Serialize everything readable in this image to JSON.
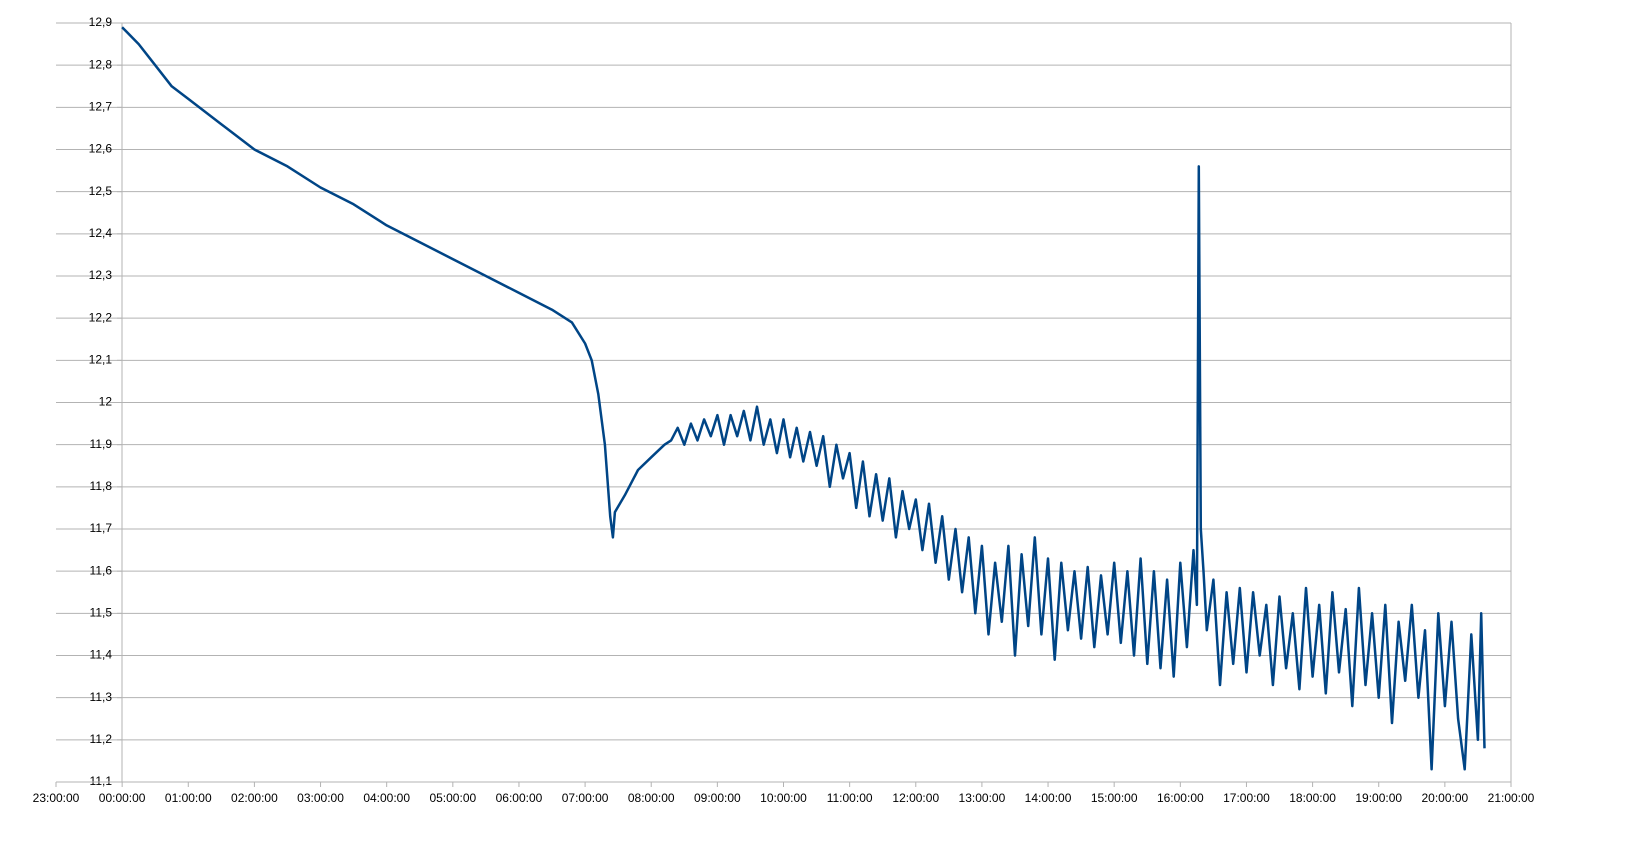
{
  "chart_data": {
    "type": "line",
    "x": [
      0,
      0.25,
      0.5,
      0.75,
      1,
      1.5,
      2,
      2.5,
      3,
      3.5,
      4,
      4.5,
      5,
      5.5,
      6,
      6.5,
      6.8,
      7,
      7.1,
      7.2,
      7.3,
      7.38,
      7.42,
      7.45,
      7.6,
      7.8,
      8.0,
      8.2,
      8.3,
      8.4,
      8.5,
      8.6,
      8.7,
      8.8,
      8.9,
      9.0,
      9.1,
      9.2,
      9.3,
      9.4,
      9.5,
      9.6,
      9.7,
      9.8,
      9.9,
      10.0,
      10.1,
      10.2,
      10.3,
      10.4,
      10.5,
      10.6,
      10.7,
      10.8,
      10.9,
      11.0,
      11.1,
      11.2,
      11.3,
      11.4,
      11.5,
      11.6,
      11.7,
      11.8,
      11.9,
      12.0,
      12.1,
      12.2,
      12.3,
      12.4,
      12.5,
      12.6,
      12.7,
      12.8,
      12.9,
      13.0,
      13.1,
      13.2,
      13.3,
      13.4,
      13.5,
      13.6,
      13.7,
      13.8,
      13.9,
      14.0,
      14.1,
      14.2,
      14.3,
      14.4,
      14.5,
      14.6,
      14.7,
      14.8,
      14.9,
      15.0,
      15.1,
      15.2,
      15.3,
      15.4,
      15.5,
      15.6,
      15.7,
      15.8,
      15.9,
      16.0,
      16.1,
      16.2,
      16.25,
      16.28,
      16.31,
      16.35,
      16.4,
      16.5,
      16.6,
      16.7,
      16.8,
      16.9,
      17.0,
      17.1,
      17.2,
      17.3,
      17.4,
      17.5,
      17.6,
      17.7,
      17.8,
      17.9,
      18.0,
      18.1,
      18.2,
      18.3,
      18.4,
      18.5,
      18.6,
      18.7,
      18.8,
      18.9,
      19.0,
      19.1,
      19.2,
      19.3,
      19.4,
      19.5,
      19.6,
      19.7,
      19.8,
      19.9,
      20.0,
      20.1,
      20.2,
      20.3,
      20.4,
      20.5,
      20.55,
      20.6
    ],
    "series": [
      {
        "color": "#004586",
        "values": [
          12.89,
          12.85,
          12.8,
          12.75,
          12.72,
          12.66,
          12.6,
          12.56,
          12.51,
          12.47,
          12.42,
          12.38,
          12.34,
          12.3,
          12.26,
          12.22,
          12.19,
          12.14,
          12.1,
          12.02,
          11.9,
          11.73,
          11.68,
          11.74,
          11.78,
          11.84,
          11.87,
          11.9,
          11.91,
          11.94,
          11.9,
          11.95,
          11.91,
          11.96,
          11.92,
          11.97,
          11.9,
          11.97,
          11.92,
          11.98,
          11.91,
          11.99,
          11.9,
          11.96,
          11.88,
          11.96,
          11.87,
          11.94,
          11.86,
          11.93,
          11.85,
          11.92,
          11.8,
          11.9,
          11.82,
          11.88,
          11.75,
          11.86,
          11.73,
          11.83,
          11.72,
          11.82,
          11.68,
          11.79,
          11.7,
          11.77,
          11.65,
          11.76,
          11.62,
          11.73,
          11.58,
          11.7,
          11.55,
          11.68,
          11.5,
          11.66,
          11.45,
          11.62,
          11.48,
          11.66,
          11.4,
          11.64,
          11.47,
          11.68,
          11.45,
          11.63,
          11.39,
          11.62,
          11.46,
          11.6,
          11.44,
          11.61,
          11.42,
          11.59,
          11.45,
          11.62,
          11.43,
          11.6,
          11.4,
          11.63,
          11.38,
          11.6,
          11.37,
          11.58,
          11.35,
          11.62,
          11.42,
          11.65,
          11.52,
          12.56,
          11.7,
          11.6,
          11.46,
          11.58,
          11.33,
          11.55,
          11.38,
          11.56,
          11.36,
          11.55,
          11.4,
          11.52,
          11.33,
          11.54,
          11.37,
          11.5,
          11.32,
          11.56,
          11.35,
          11.52,
          11.31,
          11.55,
          11.36,
          11.51,
          11.28,
          11.56,
          11.33,
          11.5,
          11.3,
          11.52,
          11.24,
          11.48,
          11.34,
          11.52,
          11.3,
          11.46,
          11.13,
          11.5,
          11.28,
          11.48,
          11.25,
          11.13,
          11.45,
          11.2,
          11.5,
          11.18
        ]
      }
    ],
    "xlim": [
      -1,
      21
    ],
    "xticks": [
      {
        "value": -1,
        "label": "23:00:00"
      },
      {
        "value": 0,
        "label": "00:00:00"
      },
      {
        "value": 1,
        "label": "01:00:00"
      },
      {
        "value": 2,
        "label": "02:00:00"
      },
      {
        "value": 3,
        "label": "03:00:00"
      },
      {
        "value": 4,
        "label": "04:00:00"
      },
      {
        "value": 5,
        "label": "05:00:00"
      },
      {
        "value": 6,
        "label": "06:00:00"
      },
      {
        "value": 7,
        "label": "07:00:00"
      },
      {
        "value": 8,
        "label": "08:00:00"
      },
      {
        "value": 9,
        "label": "09:00:00"
      },
      {
        "value": 10,
        "label": "10:00:00"
      },
      {
        "value": 11,
        "label": "11:00:00"
      },
      {
        "value": 12,
        "label": "12:00:00"
      },
      {
        "value": 13,
        "label": "13:00:00"
      },
      {
        "value": 14,
        "label": "14:00:00"
      },
      {
        "value": 15,
        "label": "15:00:00"
      },
      {
        "value": 16,
        "label": "16:00:00"
      },
      {
        "value": 17,
        "label": "17:00:00"
      },
      {
        "value": 18,
        "label": "18:00:00"
      },
      {
        "value": 19,
        "label": "19:00:00"
      },
      {
        "value": 20,
        "label": "20:00:00"
      },
      {
        "value": 21,
        "label": "21:00:00"
      }
    ],
    "ylim": [
      11.1,
      12.9
    ],
    "yticks": [
      {
        "value": 11.1,
        "label": "11,1"
      },
      {
        "value": 11.2,
        "label": "11,2"
      },
      {
        "value": 11.3,
        "label": "11,3"
      },
      {
        "value": 11.4,
        "label": "11,4"
      },
      {
        "value": 11.5,
        "label": "11,5"
      },
      {
        "value": 11.6,
        "label": "11,6"
      },
      {
        "value": 11.7,
        "label": "11,7"
      },
      {
        "value": 11.8,
        "label": "11,8"
      },
      {
        "value": 11.9,
        "label": "11,9"
      },
      12,
      {
        "value": 12.1,
        "label": "12,1"
      },
      {
        "value": 12.2,
        "label": "12,2"
      },
      {
        "value": 12.3,
        "label": "12,3"
      },
      {
        "value": 12.4,
        "label": "12,4"
      },
      {
        "value": 12.5,
        "label": "12,5"
      },
      {
        "value": 12.6,
        "label": "12,6"
      },
      {
        "value": 12.7,
        "label": "12,7"
      },
      {
        "value": 12.8,
        "label": "12,8"
      },
      {
        "value": 12.9,
        "label": "12,9"
      }
    ],
    "grid": true
  }
}
